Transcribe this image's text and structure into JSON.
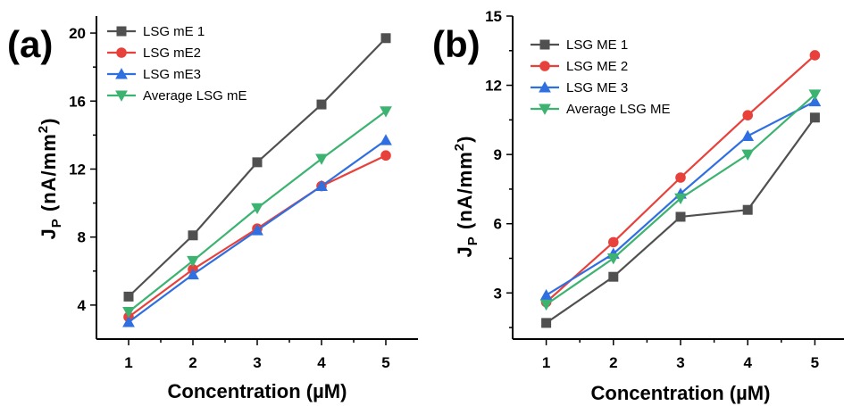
{
  "chart_data": [
    {
      "type": "line",
      "panel_label": "(a)",
      "xlabel": "Concentration (µM)",
      "ylabel_main": "J",
      "ylabel_sub": "P",
      "ylabel_rest": " (nA/mm",
      "ylabel_sup": "2",
      "ylabel_close": ")",
      "x": [
        1,
        2,
        3,
        4,
        5
      ],
      "xticks": [
        "1",
        "2",
        "3",
        "4",
        "5"
      ],
      "yticks": [
        "4",
        "8",
        "12",
        "16",
        "20"
      ],
      "ytick_values": [
        4,
        8,
        12,
        16,
        20
      ],
      "xlim": [
        0.5,
        5.5
      ],
      "ylim": [
        2,
        21
      ],
      "legend_placement": "top-left",
      "series": [
        {
          "name": "LSG mE 1",
          "color": "#505050",
          "marker": "square",
          "values": [
            4.5,
            8.1,
            12.4,
            15.8,
            19.7
          ]
        },
        {
          "name": "LSG mE2",
          "color": "#e8413c",
          "marker": "circle",
          "values": [
            3.3,
            6.1,
            8.5,
            11.0,
            12.8
          ]
        },
        {
          "name": "LSG mE3",
          "color": "#2f6fe0",
          "marker": "triangle-up",
          "values": [
            3.0,
            5.8,
            8.4,
            11.0,
            13.7
          ]
        },
        {
          "name": "Average LSG mE",
          "color": "#3cb371",
          "marker": "triangle-down",
          "values": [
            3.6,
            6.6,
            9.7,
            12.6,
            15.4
          ]
        }
      ]
    },
    {
      "type": "line",
      "panel_label": "(b)",
      "xlabel": "Concentration (µM)",
      "ylabel_main": "J",
      "ylabel_sub": "P",
      "ylabel_rest": " (nA/mm",
      "ylabel_sup": "2",
      "ylabel_close": ")",
      "x": [
        1,
        2,
        3,
        4,
        5
      ],
      "xticks": [
        "1",
        "2",
        "3",
        "4",
        "5"
      ],
      "yticks": [
        "3",
        "6",
        "9",
        "12",
        "15"
      ],
      "ytick_values": [
        3,
        6,
        9,
        12,
        15
      ],
      "xlim": [
        0.5,
        5.5
      ],
      "ylim": [
        1,
        15
      ],
      "legend_placement": "top-left",
      "series": [
        {
          "name": "LSG ME 1",
          "color": "#505050",
          "marker": "square",
          "values": [
            1.7,
            3.7,
            6.3,
            6.6,
            10.6
          ]
        },
        {
          "name": "LSG ME 2",
          "color": "#e8413c",
          "marker": "circle",
          "values": [
            2.6,
            5.2,
            8.0,
            10.7,
            13.3
          ]
        },
        {
          "name": "LSG ME 3",
          "color": "#2f6fe0",
          "marker": "triangle-up",
          "values": [
            2.9,
            4.7,
            7.3,
            9.8,
            11.3
          ]
        },
        {
          "name": "Average LSG ME",
          "color": "#3cb371",
          "marker": "triangle-down",
          "values": [
            2.5,
            4.5,
            7.1,
            9.0,
            11.6
          ]
        }
      ]
    }
  ]
}
